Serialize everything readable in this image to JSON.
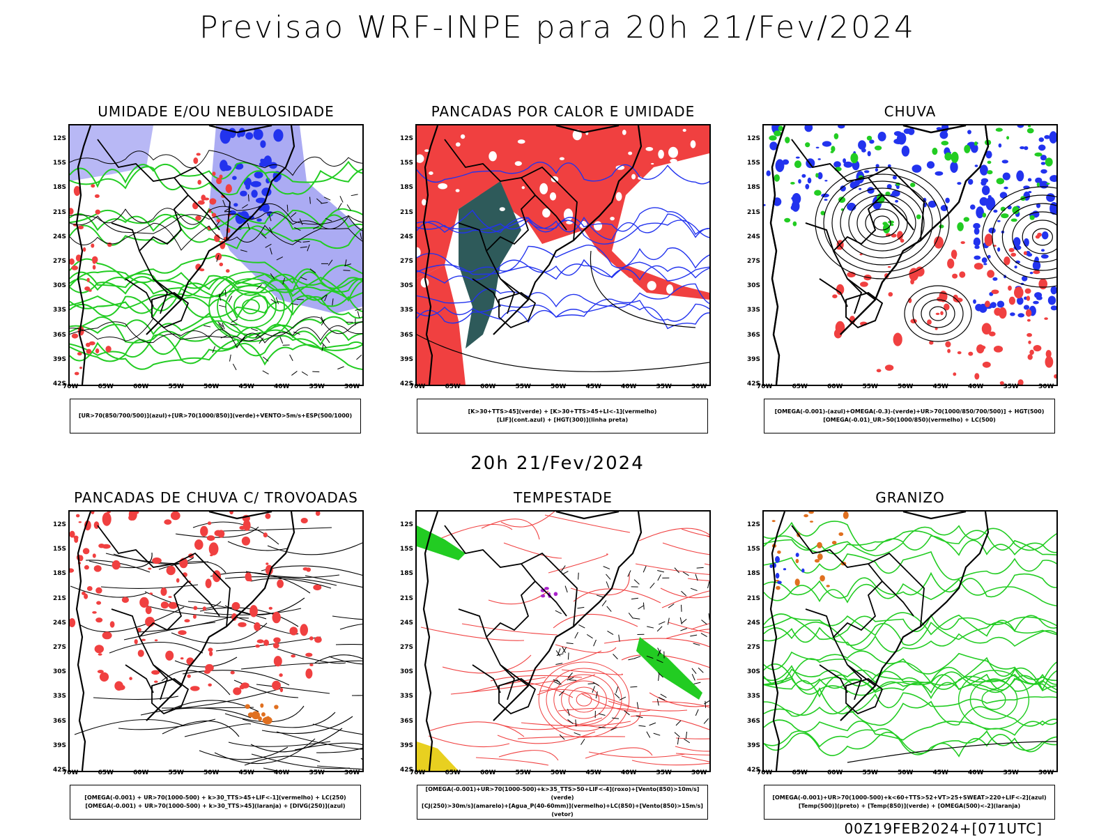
{
  "title": "Previsao WRF-INPE  para 20h 21/Fev/2024",
  "subtitle": "20h 21/Fev/2024",
  "footer": "00Z19FEB2024+[071UTC]",
  "axes": {
    "lat_labels": [
      "12S",
      "15S",
      "18S",
      "21S",
      "24S",
      "27S",
      "30S",
      "33S",
      "36S",
      "39S",
      "42S"
    ],
    "lon_labels": [
      "70W",
      "65W",
      "60W",
      "55W",
      "50W",
      "45W",
      "40W",
      "35W",
      "30W"
    ]
  },
  "colors": {
    "red": "#f04040",
    "green": "#22cc22",
    "blue": "#2233ee",
    "purple": "#8888ee",
    "teal": "#2e5a5a",
    "orange": "#e07020",
    "yellow": "#e8d020"
  },
  "panels": [
    {
      "title": "UMIDADE E/OU NEBULOSIDADE",
      "legend": [
        "[UR>70(850/700/500)](azul)+[UR>70(1000/850)](verde)+VENTO>5m/s+ESP(500/1000)"
      ],
      "style": "humidity"
    },
    {
      "title": "PANCADAS POR CALOR E UMIDADE",
      "legend": [
        "[K>30+TTS>45](verde) + [K>30+TTS>45+LI<-1](vermelho)",
        "[LIF](cont.azul) + [HGT(300)](linha preta)"
      ],
      "style": "heat"
    },
    {
      "title": "CHUVA",
      "legend": [
        "[OMEGA(-0.001)-(azul)+OMEGA(-0.3)-(verde)+UR>70(1000/850/700/500)] + HGT(500)",
        "[OMEGA(-0.01)_UR>50(1000/850)(vermelho) + LC(500)"
      ],
      "style": "rain"
    },
    {
      "title": "PANCADAS DE CHUVA C/ TROVOADAS",
      "legend": [
        "[OMEGA(-0.001) + UR>70(1000-500) + k>30_TTS>45+LIF<-1](vermelho) + LC(250)",
        "[OMEGA(-0.001) + UR>70(1000-500) + k>30_TTS>45](laranja) + [DIVG(250)](azul)"
      ],
      "style": "thunder"
    },
    {
      "title": "TEMPESTADE",
      "legend": [
        "[OMEGA(-0.001)+UR>70(1000-500)+k>35_TTS>50+LIF<-4](roxo)+[Vento(850)>10m/s](verde)",
        "[CJ(250)>30m/s](amarelo)+[Agua_P(40-60mm)](vermelho)+LC(850)+[Vento(850)>15m/s](vetor)"
      ],
      "style": "storm"
    },
    {
      "title": "GRANIZO",
      "legend": [
        "[OMEGA(-0.001)+UR>70(1000-500)+k<60+TTS>52+VT>25+SWEAT>220+LIF<-2](azul)",
        "[Temp(500)](preto) + [Temp(850)](verde) + [OMEGA(500)<-2](laranja)"
      ],
      "style": "hail"
    }
  ]
}
